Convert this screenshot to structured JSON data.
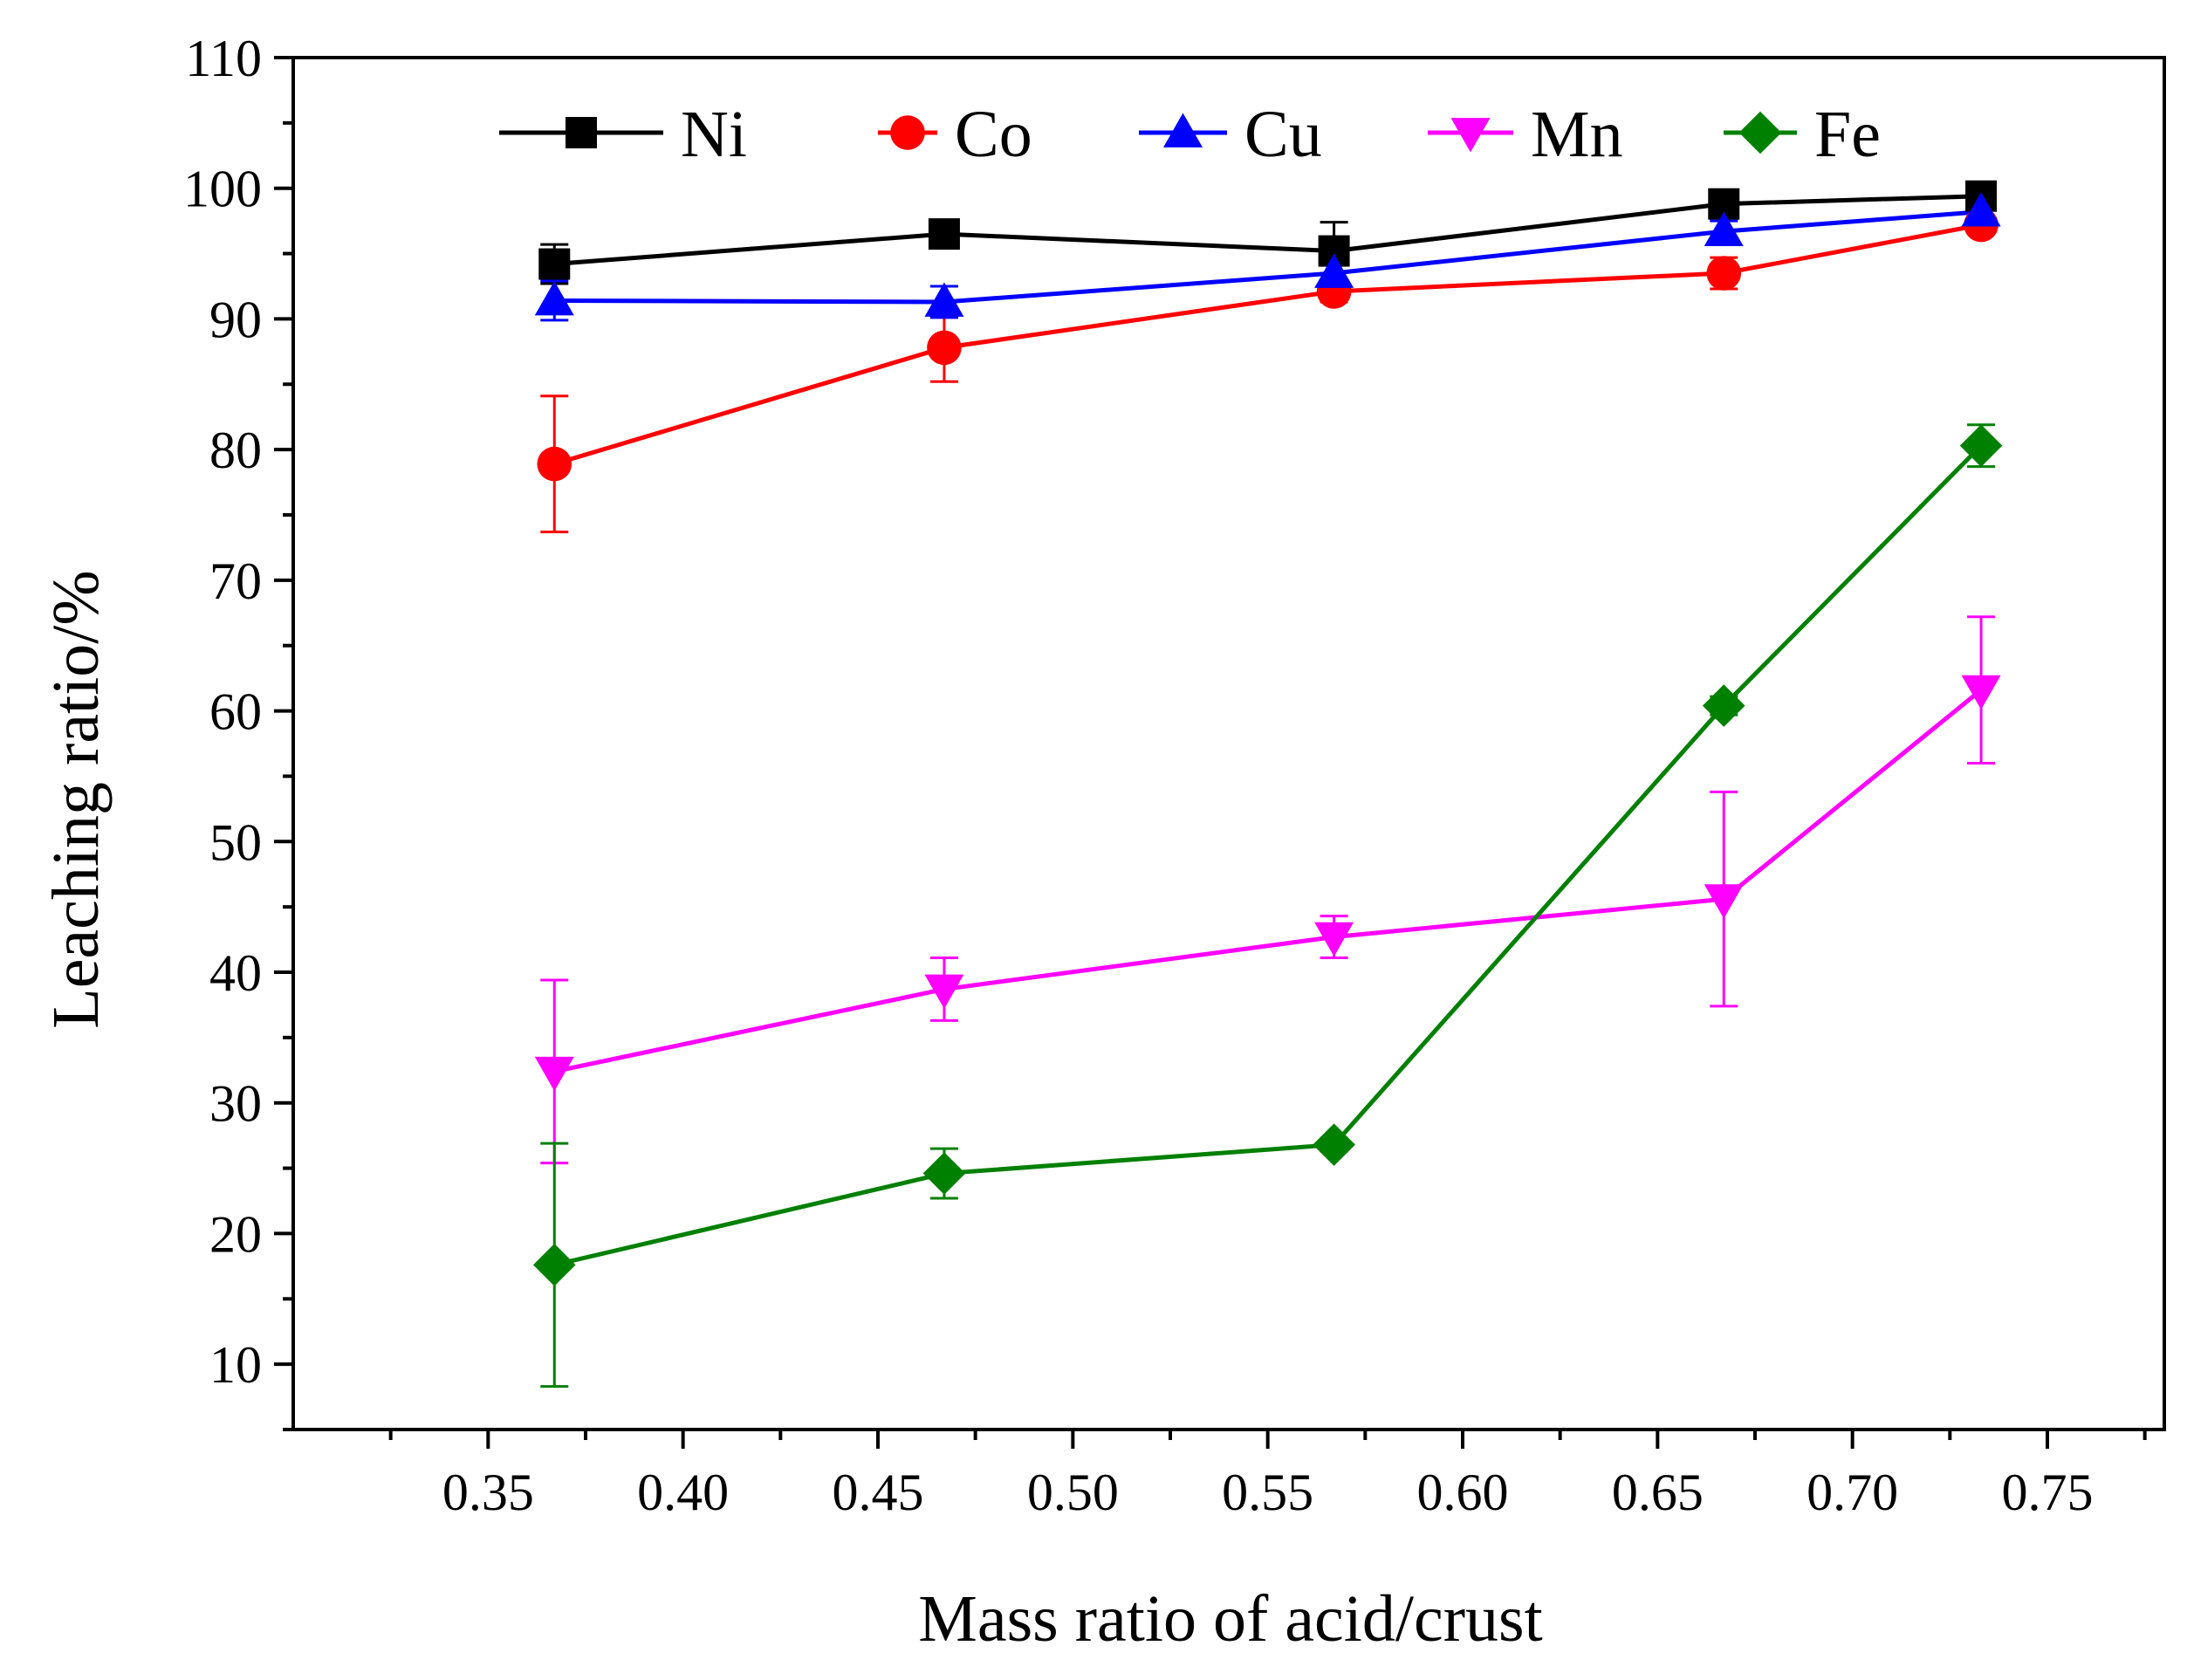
{
  "chart_data": {
    "type": "line",
    "title": "",
    "xlabel": "Mass ratio of acid/crust",
    "ylabel": "Leaching ratio/%",
    "xlim": [
      0.3,
      0.78
    ],
    "ylim": [
      5,
      110
    ],
    "x_ticks": [
      0.35,
      0.4,
      0.45,
      0.5,
      0.55,
      0.6,
      0.65,
      0.7,
      0.75
    ],
    "x_tick_labels": [
      "0.35",
      "0.40",
      "0.45",
      "0.50",
      "0.55",
      "0.60",
      "0.65",
      "0.70",
      "0.75"
    ],
    "y_ticks": [
      10,
      20,
      30,
      40,
      50,
      60,
      70,
      80,
      90,
      100,
      110
    ],
    "y_tick_labels": [
      "10",
      "20",
      "30",
      "40",
      "50",
      "60",
      "70",
      "80",
      "90",
      "100",
      "110"
    ],
    "grid": false,
    "legend_position": "top",
    "x": [
      0.367,
      0.467,
      0.567,
      0.667,
      0.733
    ],
    "series": [
      {
        "name": "Ni",
        "color": "#000000",
        "marker": "square",
        "values": [
          94.2,
          96.5,
          95.2,
          98.8,
          99.4
        ],
        "error": [
          1.5,
          0.6,
          2.2,
          0.8,
          0.5
        ]
      },
      {
        "name": "Co",
        "color": "#ff0000",
        "marker": "circle",
        "values": [
          78.9,
          87.8,
          92.1,
          93.5,
          97.2
        ],
        "error": [
          5.2,
          2.6,
          0.8,
          1.2,
          0.6
        ]
      },
      {
        "name": "Cu",
        "color": "#0000ff",
        "marker": "triangle-up",
        "values": [
          91.4,
          91.3,
          93.5,
          96.7,
          98.2
        ],
        "error": [
          1.5,
          1.2,
          1.3,
          0.8,
          0.6
        ]
      },
      {
        "name": "Mn",
        "color": "#ff00ff",
        "marker": "triangle-down",
        "values": [
          32.4,
          38.7,
          42.7,
          45.6,
          61.6
        ],
        "error": [
          7.0,
          2.4,
          1.6,
          8.2,
          5.6
        ]
      },
      {
        "name": "Fe",
        "color": "#008000",
        "marker": "diamond",
        "values": [
          17.6,
          24.6,
          26.8,
          60.4,
          80.3
        ],
        "error": [
          9.3,
          1.9,
          0.5,
          0.7,
          1.6
        ]
      }
    ]
  }
}
